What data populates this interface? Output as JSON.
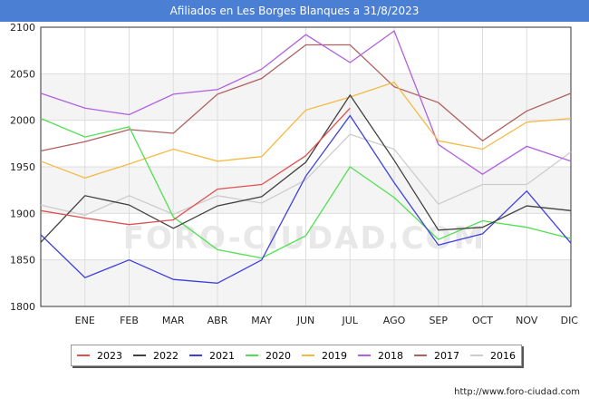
{
  "title": "Afiliados en Les Borges Blanques a 31/8/2023",
  "footer": "http://www.foro-ciudad.com",
  "watermark": "FORO-CIUDAD.COM",
  "chart_data": {
    "type": "line",
    "x": [
      "DIC",
      "ENE",
      "FEB",
      "MAR",
      "ABR",
      "MAY",
      "JUN",
      "JUL",
      "AGO",
      "SEP",
      "OCT",
      "NOV",
      "DIC"
    ],
    "x_tick_labels": [
      "",
      "ENE",
      "FEB",
      "MAR",
      "ABR",
      "MAY",
      "JUN",
      "JUL",
      "AGO",
      "SEP",
      "OCT",
      "NOV",
      "DIC"
    ],
    "ylim": [
      1800,
      2100
    ],
    "yticks": [
      1800,
      1850,
      1900,
      1950,
      2000,
      2050,
      2100
    ],
    "grid": true,
    "legend_position": "bottom",
    "series": [
      {
        "name": "2023",
        "color": "#e05050",
        "values": [
          1903,
          1895,
          1888,
          1893,
          1926,
          1931,
          1962,
          2013,
          null,
          null,
          null,
          null,
          null
        ]
      },
      {
        "name": "2022",
        "color": "#404040",
        "values": [
          1869,
          1919,
          1909,
          1884,
          1908,
          1918,
          1955,
          2027,
          1957,
          1882,
          1885,
          1908,
          1903
        ]
      },
      {
        "name": "2021",
        "color": "#4040e0",
        "values": [
          1877,
          1831,
          1850,
          1829,
          1825,
          1850,
          1940,
          2005,
          1933,
          1866,
          1878,
          1924,
          1868
        ]
      },
      {
        "name": "2020",
        "color": "#50e050",
        "values": [
          2002,
          1982,
          1993,
          1896,
          1861,
          1852,
          1876,
          1950,
          1917,
          1872,
          1892,
          1885,
          1873
        ]
      },
      {
        "name": "2019",
        "color": "#f5b942",
        "values": [
          1956,
          1938,
          1953,
          1969,
          1956,
          1961,
          2011,
          2025,
          2041,
          1978,
          1969,
          1998,
          2002
        ]
      },
      {
        "name": "2018",
        "color": "#b060e0",
        "values": [
          2029,
          2013,
          2006,
          2028,
          2033,
          2055,
          2092,
          2062,
          2096,
          1974,
          1942,
          1972,
          1956
        ]
      },
      {
        "name": "2017",
        "color": "#b06060",
        "values": [
          1967,
          1977,
          1990,
          1986,
          2028,
          2045,
          2081,
          2081,
          2036,
          2019,
          1978,
          2010,
          2029
        ]
      },
      {
        "name": "2016",
        "color": "#cccccc",
        "values": [
          1909,
          1898,
          1919,
          1899,
          1919,
          1911,
          1936,
          1985,
          1969,
          1910,
          1931,
          1931,
          1966
        ]
      }
    ]
  }
}
